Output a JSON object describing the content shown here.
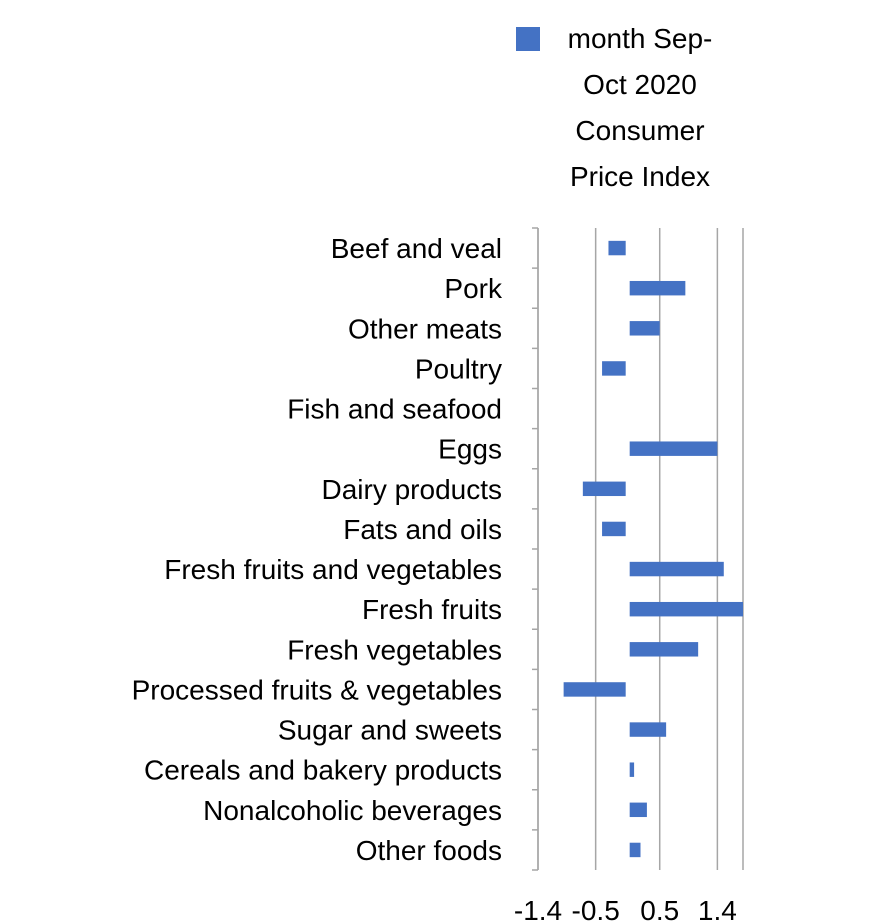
{
  "chart_data": {
    "type": "bar",
    "orientation": "horizontal",
    "categories": [
      "Beef and veal",
      "Pork",
      "Other meats",
      "Poultry",
      "Fish and seafood",
      "Eggs",
      "Dairy products",
      "Fats and oils",
      "Fresh fruits and vegetables",
      "Fresh fruits",
      "Fresh vegetables",
      "Processed fruits & vegetables",
      "Sugar and sweets",
      "Cereals and bakery products",
      "Nonalcoholic beverages",
      "Other foods"
    ],
    "series": [
      {
        "name": "month Sep-Oct 2020 Consumer Price Index",
        "color": "#4472c4",
        "values": [
          -0.3,
          0.9,
          0.5,
          -0.4,
          0.0,
          1.4,
          -0.7,
          -0.4,
          1.5,
          1.8,
          1.1,
          -1.0,
          0.6,
          0.1,
          0.3,
          0.2
        ]
      }
    ],
    "xticks": [
      -1.4,
      -0.5,
      0.5,
      1.4
    ],
    "xtick_labels": [
      "-1.4",
      "-0.5",
      "0.5",
      "1.4"
    ],
    "xlim": [
      -1.4,
      1.8
    ],
    "grid": true,
    "legend_position": "top-right",
    "title": "",
    "xlabel": "",
    "ylabel": ""
  }
}
